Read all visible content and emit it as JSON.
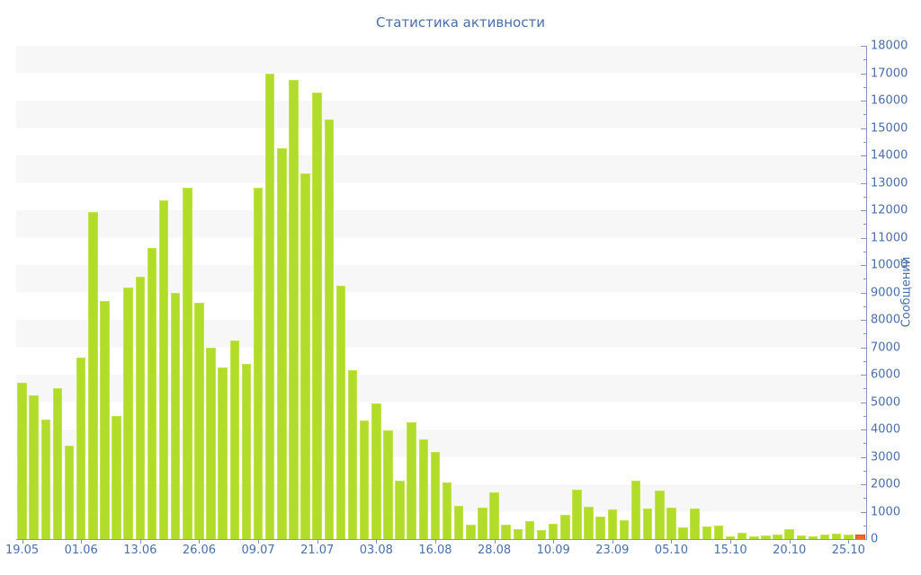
{
  "title": "Статистика активности",
  "colors": {
    "bar": "#b2dc2a",
    "bar_border": "#c3e44f",
    "last_bar": "#ea6a2b",
    "last_bar_border": "#d8511f",
    "axis": "#8593c9",
    "text": "#4a6fae",
    "stripe": "#f7f7f8"
  },
  "chart_data": {
    "type": "bar",
    "title": "Статистика активности",
    "xlabel": "",
    "ylabel": "Сообщений",
    "ylim": [
      0,
      18000
    ],
    "y_major_step": 1000,
    "y_minor_step": 500,
    "grid": "alternating horizontal bands, no legend",
    "legend": null,
    "y_tick_labels": [
      "0",
      "1000",
      "2000",
      "3000",
      "4000",
      "5000",
      "6000",
      "7000",
      "8000",
      "9000",
      "10000",
      "11000",
      "12000",
      "13000",
      "14000",
      "15000",
      "16000",
      "17000",
      "18000"
    ],
    "x_tick_labels": [
      "19.05",
      "01.06",
      "13.06",
      "26.06",
      "09.07",
      "21.07",
      "03.08",
      "16.08",
      "28.08",
      "10.09",
      "23.09",
      "05.10",
      "15.10",
      "20.10",
      "25.10"
    ],
    "x_tick_every": 5,
    "highlight_last_bar": true,
    "values": [
      5700,
      5250,
      4370,
      5520,
      3420,
      6630,
      11930,
      8690,
      4490,
      9180,
      9580,
      10620,
      12350,
      8980,
      12820,
      8610,
      7000,
      6250,
      7240,
      6390,
      12810,
      16990,
      14260,
      16740,
      13350,
      16310,
      15320,
      9260,
      6150,
      4340,
      4940,
      3980,
      2130,
      4260,
      3630,
      3170,
      2080,
      1220,
      520,
      1150,
      1720,
      530,
      370,
      670,
      330,
      550,
      900,
      1790,
      1180,
      810,
      1070,
      690,
      2120,
      1110,
      1770,
      1160,
      440,
      1130,
      470,
      500,
      100,
      220,
      100,
      130,
      175,
      350,
      135,
      90,
      150,
      210,
      150,
      175
    ]
  }
}
